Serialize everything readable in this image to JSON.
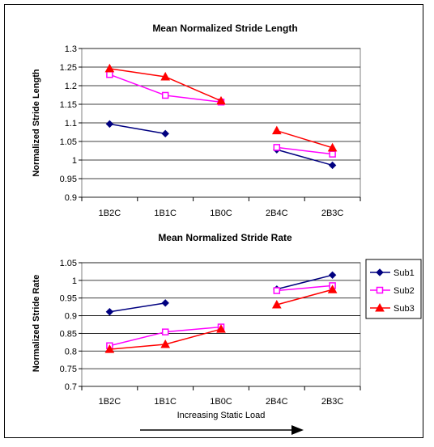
{
  "chart_data": [
    {
      "type": "line",
      "title": "Mean Normalized Stride Length",
      "xlabel": "",
      "ylabel": "Normalized Stride Length",
      "categories": [
        "1B2C",
        "1B1C",
        "1B0C",
        "2B4C",
        "2B3C"
      ],
      "ylim": [
        0.9,
        1.3
      ],
      "yticks": [
        "0.9",
        "0.95",
        "1",
        "1.05",
        "1.1",
        "1.15",
        "1.2",
        "1.25",
        "1.3"
      ],
      "grid": true,
      "series": [
        {
          "name": "Sub1",
          "values": [
            1.097,
            1.071,
            null,
            1.028,
            0.986
          ]
        },
        {
          "name": "Sub2",
          "values": [
            1.23,
            1.174,
            1.156,
            1.034,
            1.016
          ]
        },
        {
          "name": "Sub3",
          "values": [
            1.246,
            1.224,
            1.159,
            1.079,
            1.033
          ]
        }
      ]
    },
    {
      "type": "line",
      "title": "Mean Normalized Stride Rate",
      "xlabel": "Increasing Static Load",
      "ylabel": "Normalized Stride Rate",
      "categories": [
        "1B2C",
        "1B1C",
        "1B0C",
        "2B4C",
        "2B3C"
      ],
      "ylim": [
        0.7,
        1.05
      ],
      "yticks": [
        "0.7",
        "0.75",
        "0.8",
        "0.85",
        "0.9",
        "0.95",
        "1",
        "1.05"
      ],
      "grid": true,
      "legend": "right",
      "series": [
        {
          "name": "Sub1",
          "values": [
            0.911,
            0.936,
            null,
            0.975,
            1.015
          ]
        },
        {
          "name": "Sub2",
          "values": [
            0.815,
            0.854,
            0.868,
            0.971,
            0.985
          ]
        },
        {
          "name": "Sub3",
          "values": [
            0.805,
            0.819,
            0.862,
            0.931,
            0.974
          ]
        }
      ]
    }
  ],
  "legend": [
    {
      "name": "Sub1",
      "color": "#000080",
      "marker": "diamond"
    },
    {
      "name": "Sub2",
      "color": "#ff00ff",
      "marker": "square"
    },
    {
      "name": "Sub3",
      "color": "#ff0000",
      "marker": "triangle"
    }
  ]
}
